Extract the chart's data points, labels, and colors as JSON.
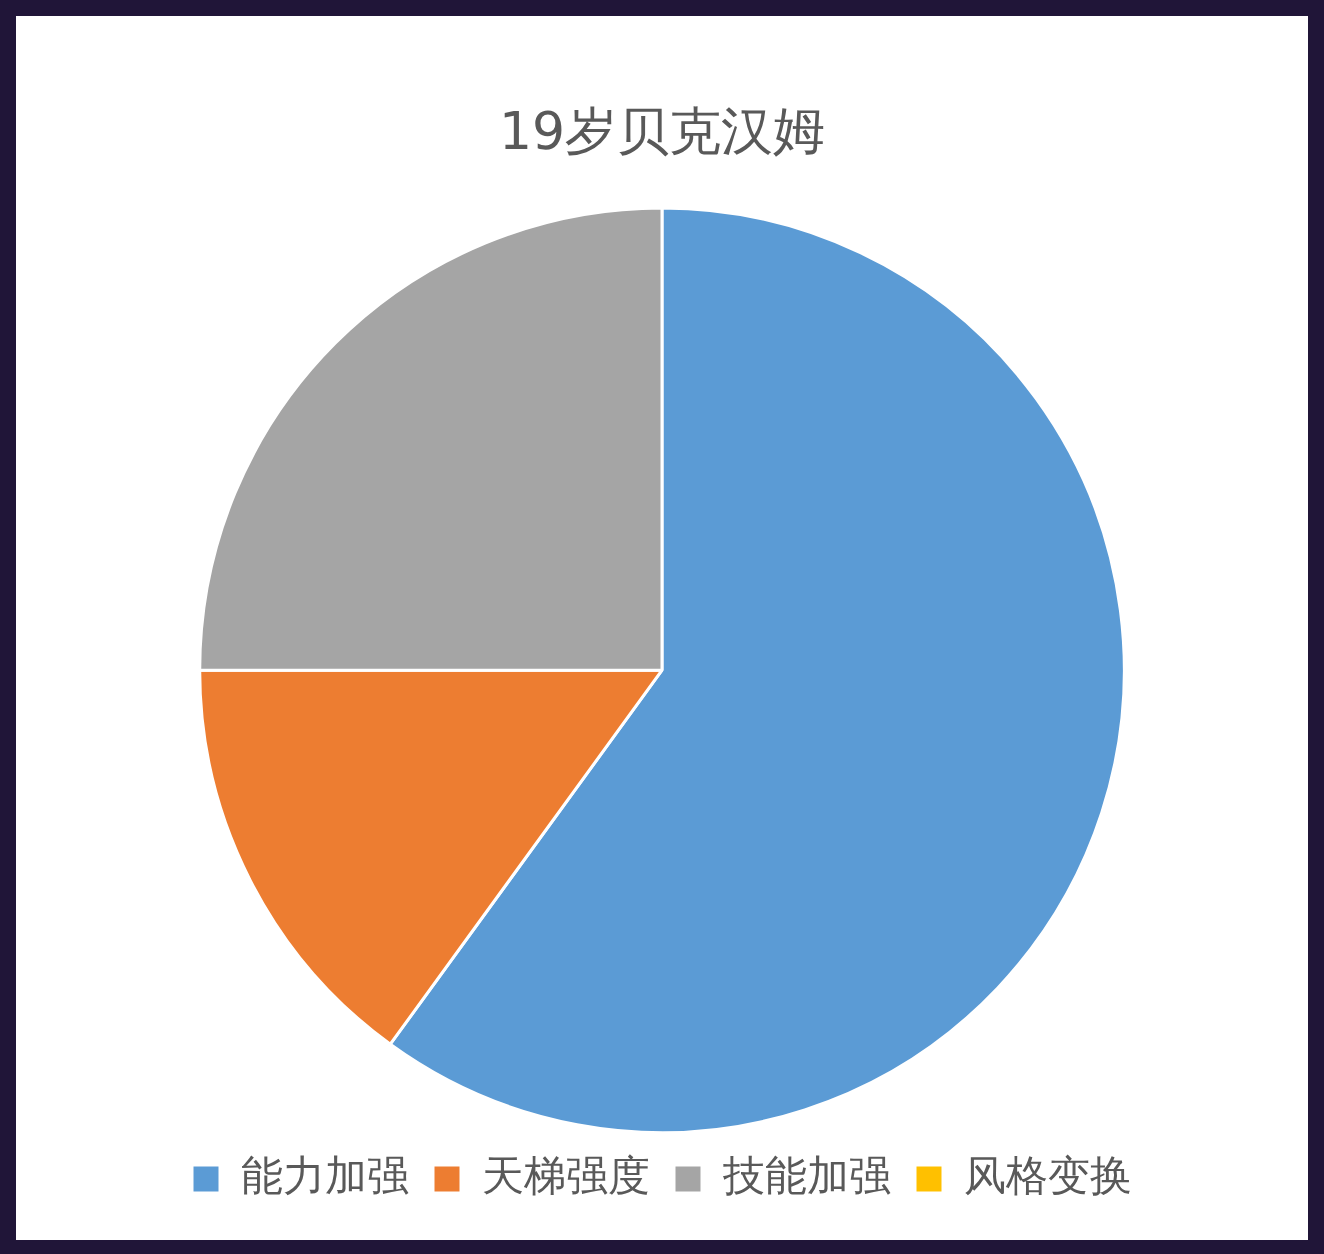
{
  "chart_data": {
    "type": "pie",
    "title": "19岁贝克汉姆",
    "categories": [
      "能力加强",
      "天梯强度",
      "技能加强",
      "风格变换"
    ],
    "values": [
      60,
      15,
      25,
      0
    ],
    "colors": [
      "#5b9bd5",
      "#ed7d31",
      "#a5a5a5",
      "#ffc000"
    ],
    "legend": "bottom"
  }
}
